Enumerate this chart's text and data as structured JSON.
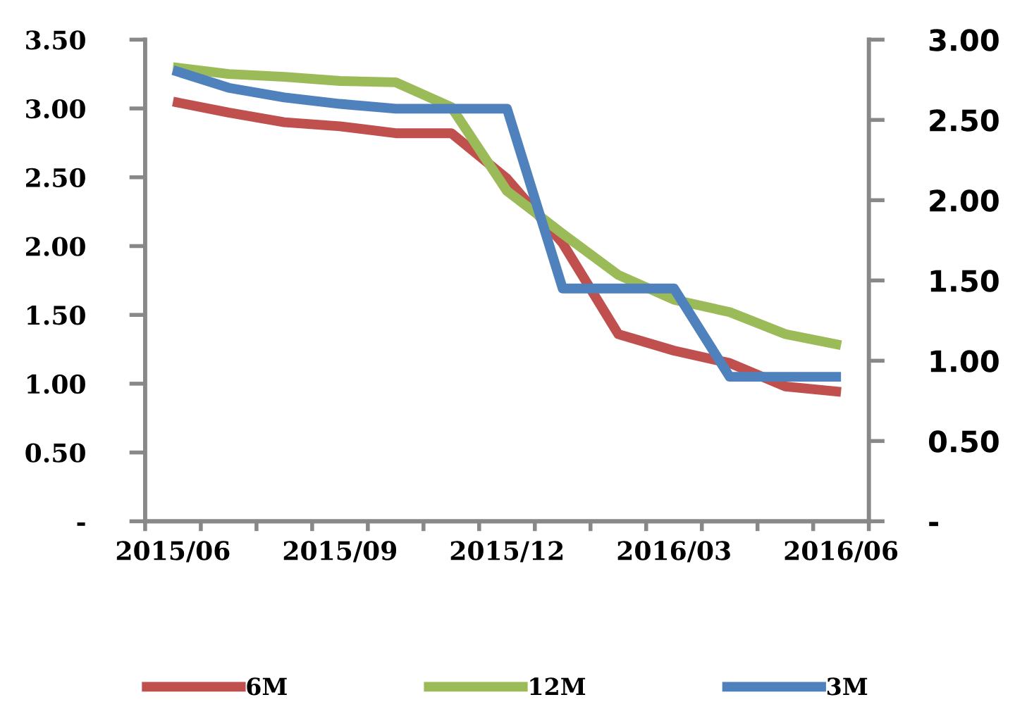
{
  "chart_data": {
    "type": "line",
    "categories": [
      "2015/06",
      null,
      null,
      "2015/09",
      null,
      null,
      "2015/12",
      null,
      null,
      "2016/03",
      null,
      null,
      "2016/06"
    ],
    "series": [
      {
        "name": "6M",
        "color": "#c0504d",
        "values": [
          3.05,
          2.97,
          2.9,
          2.87,
          2.82,
          2.82,
          2.49,
          2.02,
          1.36,
          1.24,
          1.15,
          0.98,
          0.94
        ]
      },
      {
        "name": "12M",
        "color": "#9bbb59",
        "values": [
          3.3,
          3.25,
          3.23,
          3.2,
          3.19,
          3.01,
          2.4,
          2.09,
          1.79,
          1.61,
          1.52,
          1.36,
          1.28
        ]
      },
      {
        "name": "3M",
        "color": "#4f81bd",
        "axis": "y2",
        "values": [
          2.81,
          2.7,
          2.64,
          2.6,
          2.57,
          2.57,
          2.57,
          1.45,
          1.45,
          1.45,
          0.9,
          0.9,
          0.9
        ]
      }
    ],
    "ylim": [
      0,
      3.5
    ],
    "yticks": [
      {
        "value": 0,
        "label": "-"
      },
      {
        "value": 0.5,
        "label": "0.50"
      },
      {
        "value": 1,
        "label": "1.00"
      },
      {
        "value": 1.5,
        "label": "1.50"
      },
      {
        "value": 2,
        "label": "2.00"
      },
      {
        "value": 2.5,
        "label": "2.50"
      },
      {
        "value": 3,
        "label": "3.00"
      },
      {
        "value": 3.5,
        "label": "3.50"
      }
    ],
    "y2lim": [
      0,
      3.0
    ],
    "y2ticks": [
      {
        "value": 0,
        "label": "-"
      },
      {
        "value": 0.5,
        "label": "0.50"
      },
      {
        "value": 1,
        "label": "1.00"
      },
      {
        "value": 1.5,
        "label": "1.50"
      },
      {
        "value": 2,
        "label": "2.00"
      },
      {
        "value": 2.5,
        "label": "2.50"
      },
      {
        "value": 3,
        "label": "3.00"
      }
    ],
    "grid": false,
    "legend": "bottom",
    "marker": "none",
    "line_style": "solid"
  }
}
